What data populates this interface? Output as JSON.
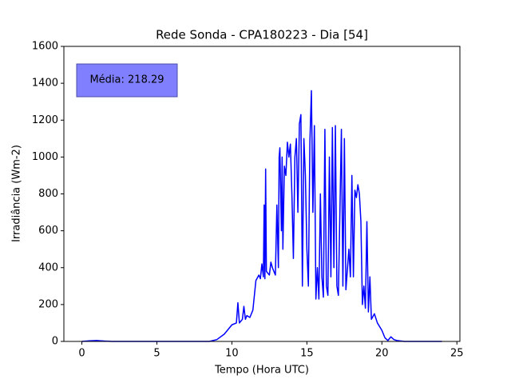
{
  "chart_data": {
    "type": "line",
    "title": "Rede Sonda - CPA180223 - Dia [54]",
    "xlabel": "Tempo (Hora UTC)",
    "ylabel": "Irradiância (Wm-2)",
    "annotation": "Média: 218.29",
    "xlim": [
      -1.2,
      25.2
    ],
    "xticks": [
      0,
      5,
      10,
      15,
      20,
      25
    ],
    "ylim": [
      0,
      1600
    ],
    "yticks": [
      0,
      200,
      400,
      600,
      800,
      1000,
      1200,
      1400,
      1600
    ],
    "series": [
      {
        "color": "#0000ff",
        "x": [
          0,
          0.5,
          1,
          1.5,
          2,
          8.5,
          9,
          9.5,
          10,
          10.3,
          10.4,
          10.5,
          10.7,
          10.8,
          10.9,
          11,
          11.2,
          11.4,
          11.6,
          11.8,
          11.9,
          12,
          12.1,
          12.15,
          12.2,
          12.25,
          12.3,
          12.5,
          12.6,
          12.7,
          12.9,
          13,
          13.1,
          13.15,
          13.2,
          13.3,
          13.35,
          13.4,
          13.5,
          13.6,
          13.7,
          13.8,
          13.9,
          14,
          14.1,
          14.2,
          14.3,
          14.4,
          14.5,
          14.6,
          14.7,
          14.8,
          14.9,
          15,
          15.1,
          15.2,
          15.3,
          15.4,
          15.5,
          15.6,
          15.7,
          15.8,
          15.9,
          16,
          16.1,
          16.2,
          16.3,
          16.4,
          16.5,
          16.6,
          16.7,
          16.8,
          16.9,
          17,
          17.1,
          17.3,
          17.4,
          17.5,
          17.6,
          17.8,
          17.9,
          18,
          18.1,
          18.2,
          18.3,
          18.4,
          18.5,
          18.6,
          18.7,
          18.8,
          18.9,
          19,
          19.1,
          19.2,
          19.3,
          19.5,
          19.7,
          20,
          20.2,
          20.4,
          20.6,
          20.8,
          21,
          21.5,
          24
        ],
        "values": [
          0,
          3,
          5,
          2,
          0,
          0,
          10,
          40,
          90,
          100,
          210,
          100,
          120,
          190,
          120,
          140,
          130,
          170,
          330,
          360,
          340,
          420,
          350,
          740,
          340,
          935,
          380,
          360,
          430,
          400,
          360,
          740,
          400,
          1000,
          1050,
          600,
          1000,
          500,
          950,
          900,
          1080,
          1000,
          1070,
          800,
          450,
          1000,
          1100,
          700,
          1180,
          1230,
          300,
          1100,
          900,
          500,
          300,
          1080,
          1360,
          700,
          1170,
          230,
          400,
          230,
          800,
          350,
          240,
          1150,
          300,
          250,
          1000,
          350,
          1160,
          400,
          1170,
          300,
          250,
          1150,
          300,
          1100,
          280,
          500,
          350,
          900,
          350,
          820,
          780,
          850,
          800,
          650,
          200,
          300,
          180,
          650,
          160,
          350,
          120,
          150,
          100,
          60,
          20,
          5,
          25,
          10,
          5,
          0,
          0
        ]
      }
    ]
  }
}
